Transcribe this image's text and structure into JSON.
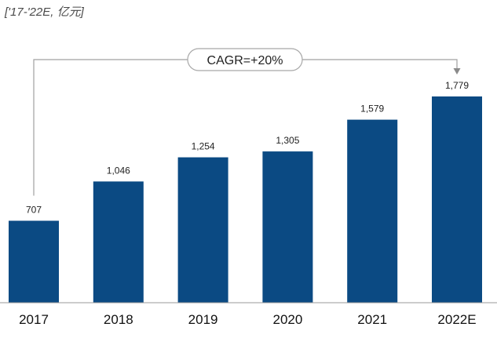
{
  "chart_data": {
    "type": "bar",
    "unit_label": "['17-'22E, 亿元]",
    "categories": [
      "2017",
      "2018",
      "2019",
      "2020",
      "2021",
      "2022E"
    ],
    "values": [
      707,
      1046,
      1254,
      1305,
      1579,
      1779
    ],
    "value_labels": [
      "707",
      "1,046",
      "1,254",
      "1,305",
      "1,579",
      "1,779"
    ],
    "annotation": {
      "text": "CAGR=+20%",
      "from": "2017",
      "to": "2022E"
    },
    "bar_color": "#0b4a83",
    "ylim": [
      0,
      1900
    ],
    "grid": false,
    "legend": "none"
  }
}
